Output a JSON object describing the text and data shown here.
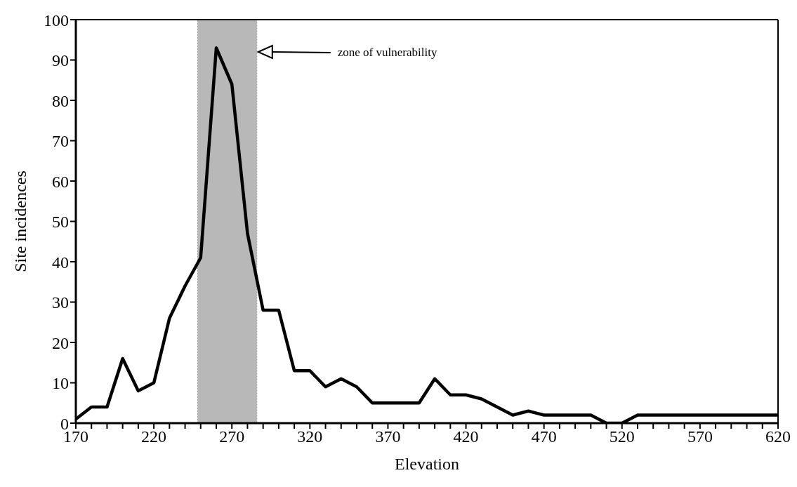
{
  "chart_data": {
    "type": "line",
    "xlabel": "Elevation",
    "ylabel": "Site incidences",
    "x": [
      170,
      180,
      190,
      200,
      210,
      220,
      230,
      240,
      250,
      260,
      270,
      280,
      290,
      300,
      310,
      320,
      330,
      340,
      350,
      360,
      370,
      380,
      390,
      400,
      410,
      420,
      430,
      440,
      450,
      460,
      470,
      480,
      490,
      500,
      510,
      520,
      530,
      540,
      550,
      560,
      570,
      580,
      590,
      600,
      610,
      620
    ],
    "series": [
      {
        "color": "#000000",
        "values": [
          1,
          4,
          4,
          16,
          8,
          10,
          26,
          34,
          41,
          93,
          84,
          47,
          28,
          28,
          13,
          13,
          9,
          11,
          9,
          5,
          5,
          5,
          5,
          11,
          7,
          7,
          6,
          4,
          2,
          3,
          2,
          2,
          2,
          2,
          0,
          0,
          2,
          2,
          2,
          2,
          2,
          2,
          2,
          2,
          2,
          2
        ]
      }
    ],
    "xlim": [
      170,
      620
    ],
    "xticks": [
      170,
      {
        "value": 180,
        "label": null
      },
      {
        "value": 190,
        "label": null
      },
      {
        "value": 200,
        "label": null
      },
      {
        "value": 210,
        "label": null
      },
      220,
      {
        "value": 230,
        "label": null
      },
      {
        "value": 240,
        "label": null
      },
      {
        "value": 250,
        "label": null
      },
      {
        "value": 260,
        "label": null
      },
      270,
      {
        "value": 280,
        "label": null
      },
      {
        "value": 290,
        "label": null
      },
      {
        "value": 300,
        "label": null
      },
      {
        "value": 310,
        "label": null
      },
      320,
      {
        "value": 330,
        "label": null
      },
      {
        "value": 340,
        "label": null
      },
      {
        "value": 350,
        "label": null
      },
      {
        "value": 360,
        "label": null
      },
      370,
      {
        "value": 380,
        "label": null
      },
      {
        "value": 390,
        "label": null
      },
      {
        "value": 400,
        "label": null
      },
      {
        "value": 410,
        "label": null
      },
      420,
      {
        "value": 430,
        "label": null
      },
      {
        "value": 440,
        "label": null
      },
      {
        "value": 450,
        "label": null
      },
      {
        "value": 460,
        "label": null
      },
      470,
      {
        "value": 480,
        "label": null
      },
      {
        "value": 490,
        "label": null
      },
      {
        "value": 500,
        "label": null
      },
      {
        "value": 510,
        "label": null
      },
      520,
      {
        "value": 530,
        "label": null
      },
      {
        "value": 540,
        "label": null
      },
      {
        "value": 550,
        "label": null
      },
      {
        "value": 560,
        "label": null
      },
      570,
      {
        "value": 580,
        "label": null
      },
      {
        "value": 590,
        "label": null
      },
      {
        "value": 600,
        "label": null
      },
      {
        "value": 610,
        "label": null
      },
      620
    ],
    "ylim": [
      0,
      100
    ],
    "yticks": [
      0,
      10,
      20,
      30,
      40,
      50,
      60,
      70,
      80,
      90,
      100
    ],
    "bands": [
      {
        "axis": "x",
        "from": 248,
        "to": 286,
        "color": "#b8b8b8"
      }
    ],
    "annotations": [
      "zone of vulnerability"
    ],
    "grid": false,
    "legend": false,
    "marker": "none",
    "line_style": "solid"
  }
}
